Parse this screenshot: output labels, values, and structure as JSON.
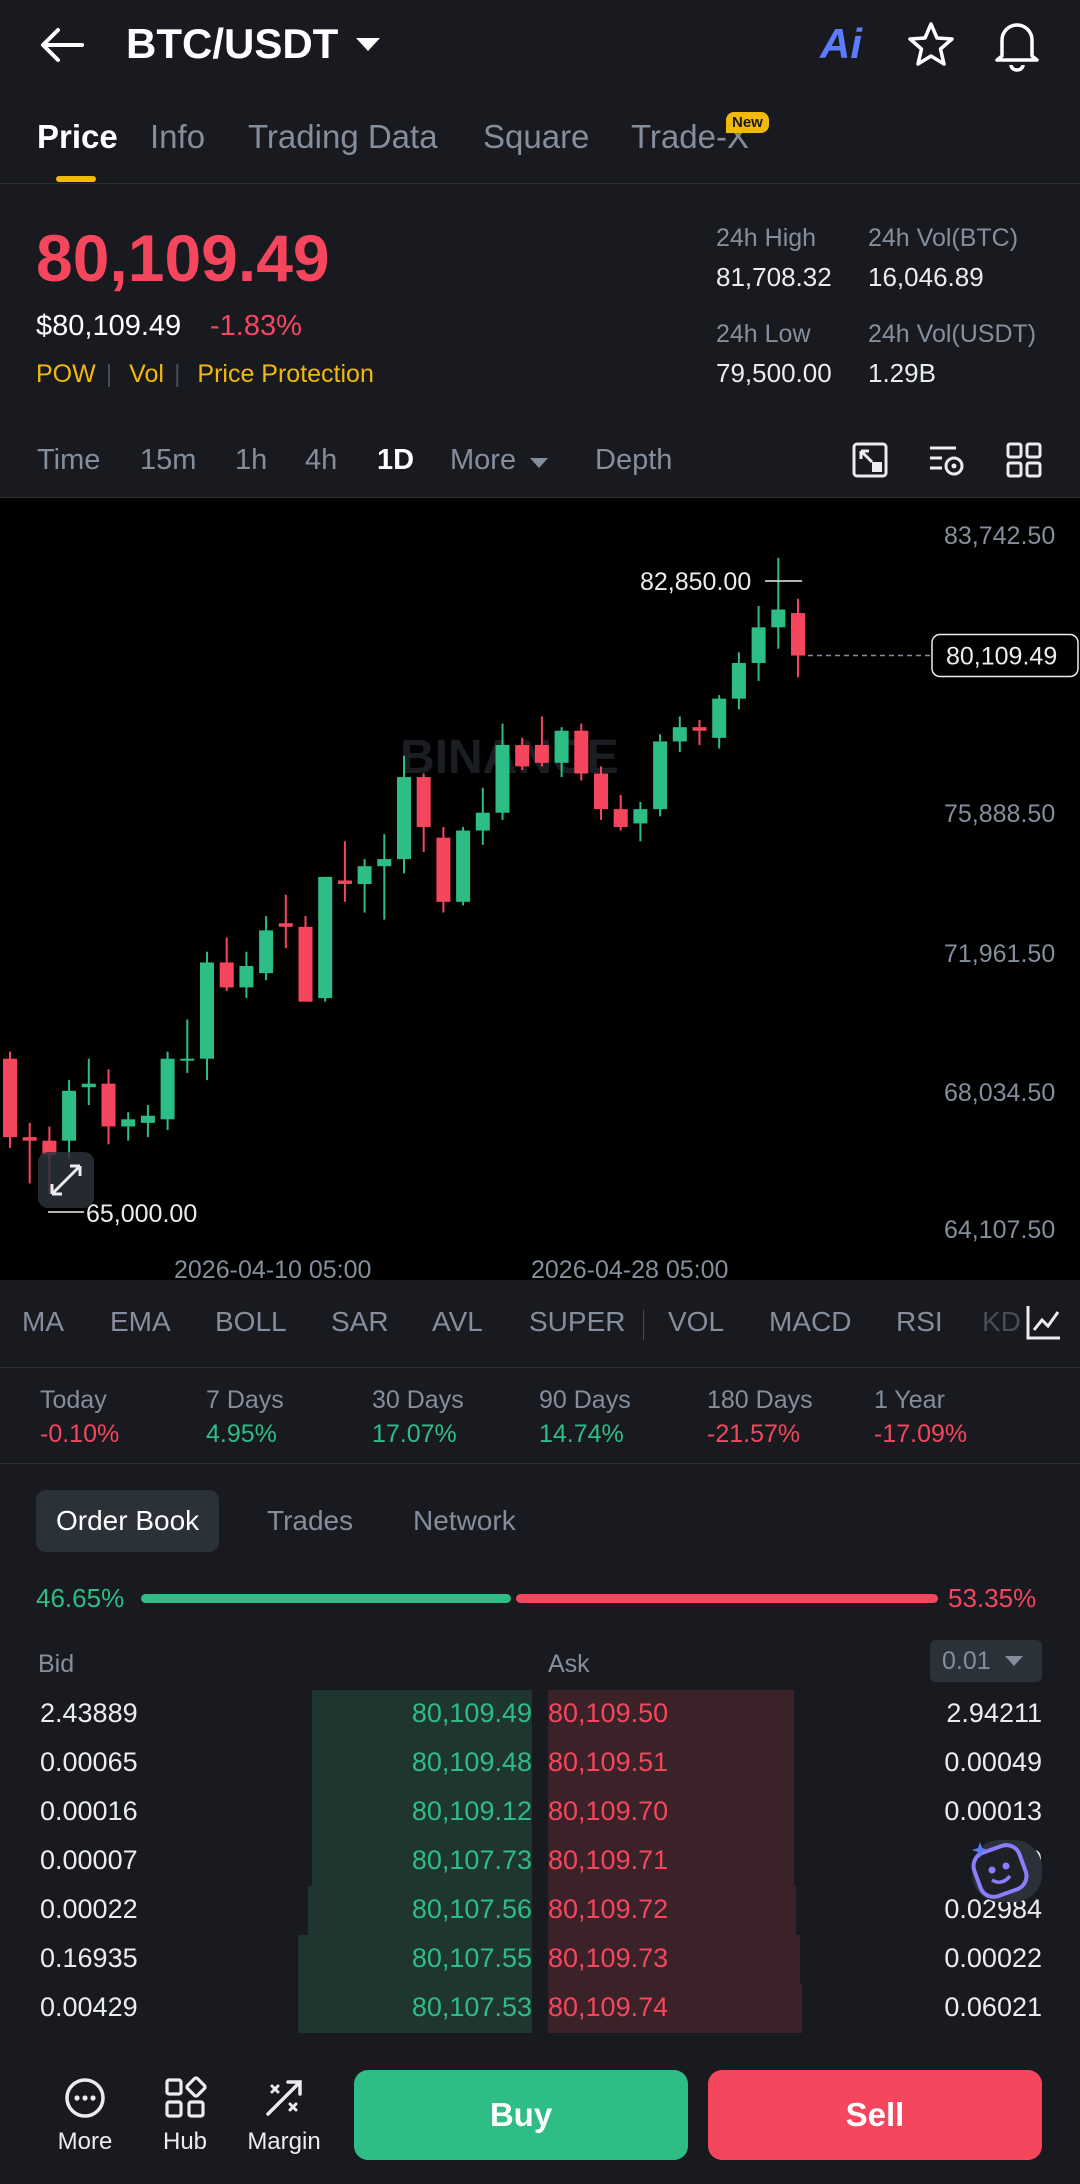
{
  "header": {
    "pair": "BTC/USDT",
    "ai_label": "Ai",
    "icons": [
      "back-arrow-icon",
      "chevron-down-icon",
      "star-icon",
      "bell-icon"
    ]
  },
  "tabs": [
    {
      "label": "Price",
      "active": true
    },
    {
      "label": "Info"
    },
    {
      "label": "Trading Data"
    },
    {
      "label": "Square"
    },
    {
      "label": "Trade-X",
      "badge": "New"
    }
  ],
  "price": {
    "last": "80,109.49",
    "usd": "$80,109.49",
    "change": "-1.83%",
    "tags": [
      "POW",
      "Vol",
      "Price Protection"
    ],
    "stats": [
      {
        "label": "24h High",
        "value": "81,708.32"
      },
      {
        "label": "24h Vol(BTC)",
        "value": "16,046.89"
      },
      {
        "label": "24h Low",
        "value": "79,500.00"
      },
      {
        "label": "24h Vol(USDT)",
        "value": "1.29B"
      }
    ]
  },
  "timebar": {
    "items": [
      "Time",
      "15m",
      "1h",
      "4h",
      "1D",
      "More",
      "Depth"
    ],
    "active": "1D"
  },
  "chart_data": {
    "type": "candlestick",
    "y_ticks": [
      "83,742.50",
      "75,888.50",
      "71,961.50",
      "68,034.50",
      "64,107.50"
    ],
    "ylim": [
      64107.5,
      83742.5
    ],
    "x_ticks": [
      "2026-04-10 05:00",
      "2026-04-28 05:00"
    ],
    "high_label": "82,850.00",
    "low_label": "65,000.00",
    "current_label": "80,109.49",
    "current": 80109.49,
    "up_color": "#2ebd85",
    "down_color": "#f6465d",
    "candles": [
      [
        68800,
        69000,
        66300,
        66600
      ],
      [
        66600,
        67000,
        65300,
        66500
      ],
      [
        66500,
        66900,
        65000,
        66100
      ],
      [
        66500,
        68200,
        66000,
        67900
      ],
      [
        68000,
        68800,
        67500,
        68100
      ],
      [
        68100,
        68500,
        66400,
        66900
      ],
      [
        66900,
        67300,
        66500,
        67100
      ],
      [
        67000,
        67500,
        66600,
        67200
      ],
      [
        67100,
        69000,
        66800,
        68800
      ],
      [
        68800,
        69900,
        68400,
        68800
      ],
      [
        68800,
        71800,
        68200,
        71500
      ],
      [
        71500,
        72200,
        70700,
        70800
      ],
      [
        70800,
        71800,
        70500,
        71400
      ],
      [
        71200,
        72800,
        71000,
        72400
      ],
      [
        72600,
        73400,
        71900,
        72500
      ],
      [
        72500,
        72800,
        70400,
        70400
      ],
      [
        70500,
        73900,
        70400,
        73900
      ],
      [
        73800,
        74900,
        73200,
        73700
      ],
      [
        73700,
        74400,
        72900,
        74200
      ],
      [
        74200,
        75100,
        72700,
        74400
      ],
      [
        74400,
        77300,
        74000,
        76700
      ],
      [
        76700,
        76800,
        74600,
        75300
      ],
      [
        75000,
        75300,
        72900,
        73200
      ],
      [
        73200,
        75300,
        73100,
        75200
      ],
      [
        75200,
        76400,
        74800,
        75700
      ],
      [
        75700,
        78200,
        75500,
        77600
      ],
      [
        77600,
        77800,
        76900,
        77000
      ],
      [
        77600,
        78400,
        77000,
        77100
      ],
      [
        77100,
        78100,
        76700,
        78000
      ],
      [
        78000,
        78200,
        76600,
        76800
      ],
      [
        76800,
        77000,
        75500,
        75800
      ],
      [
        75800,
        76200,
        75200,
        75300
      ],
      [
        75400,
        76000,
        74900,
        75800
      ],
      [
        75800,
        77900,
        75600,
        77700
      ],
      [
        77700,
        78400,
        77400,
        78100
      ],
      [
        78100,
        78300,
        77600,
        78000
      ],
      [
        77800,
        79000,
        77500,
        78900
      ],
      [
        78900,
        80200,
        78600,
        79900
      ],
      [
        79900,
        81500,
        79400,
        80900
      ],
      [
        80900,
        82850,
        80300,
        81400
      ],
      [
        81300,
        81700,
        79500,
        80109
      ]
    ]
  },
  "indicators": [
    "MA",
    "EMA",
    "BOLL",
    "SAR",
    "AVL",
    "SUPER",
    "VOL",
    "MACD",
    "RSI",
    "KD"
  ],
  "performance": [
    {
      "label": "Today",
      "value": "-0.10%",
      "dir": "down"
    },
    {
      "label": "7 Days",
      "value": "4.95%",
      "dir": "up"
    },
    {
      "label": "30 Days",
      "value": "17.07%",
      "dir": "up"
    },
    {
      "label": "90 Days",
      "value": "14.74%",
      "dir": "up"
    },
    {
      "label": "180 Days",
      "value": "-21.57%",
      "dir": "down"
    },
    {
      "label": "1 Year",
      "value": "-17.09%",
      "dir": "down"
    }
  ],
  "orderbook": {
    "tabs": [
      "Order Book",
      "Trades",
      "Network"
    ],
    "bid_ratio": "46.65%",
    "ask_ratio": "53.35%",
    "bid_header": "Bid",
    "ask_header": "Ask",
    "precision": "0.01",
    "rows": [
      {
        "bid_qty": "2.43889",
        "bid_price": "80,109.49",
        "ask_price": "80,109.50",
        "ask_qty": "2.94211"
      },
      {
        "bid_qty": "0.00065",
        "bid_price": "80,109.48",
        "ask_price": "80,109.51",
        "ask_qty": "0.00049"
      },
      {
        "bid_qty": "0.00016",
        "bid_price": "80,109.12",
        "ask_price": "80,109.70",
        "ask_qty": "0.00013"
      },
      {
        "bid_qty": "0.00007",
        "bid_price": "80,107.73",
        "ask_price": "80,109.71",
        "ask_qty": "0.0"
      },
      {
        "bid_qty": "0.00022",
        "bid_price": "80,107.56",
        "ask_price": "80,109.72",
        "ask_qty": "0.02984"
      },
      {
        "bid_qty": "0.16935",
        "bid_price": "80,107.55",
        "ask_price": "80,109.73",
        "ask_qty": "0.00022"
      },
      {
        "bid_qty": "0.00429",
        "bid_price": "80,107.53",
        "ask_price": "80,109.74",
        "ask_qty": "0.06021"
      }
    ]
  },
  "bottom": {
    "items": [
      {
        "label": "More",
        "icon": "more-circle-icon"
      },
      {
        "label": "Hub",
        "icon": "hub-grid-icon"
      },
      {
        "label": "Margin",
        "icon": "margin-icon"
      }
    ],
    "buy": "Buy",
    "sell": "Sell"
  }
}
